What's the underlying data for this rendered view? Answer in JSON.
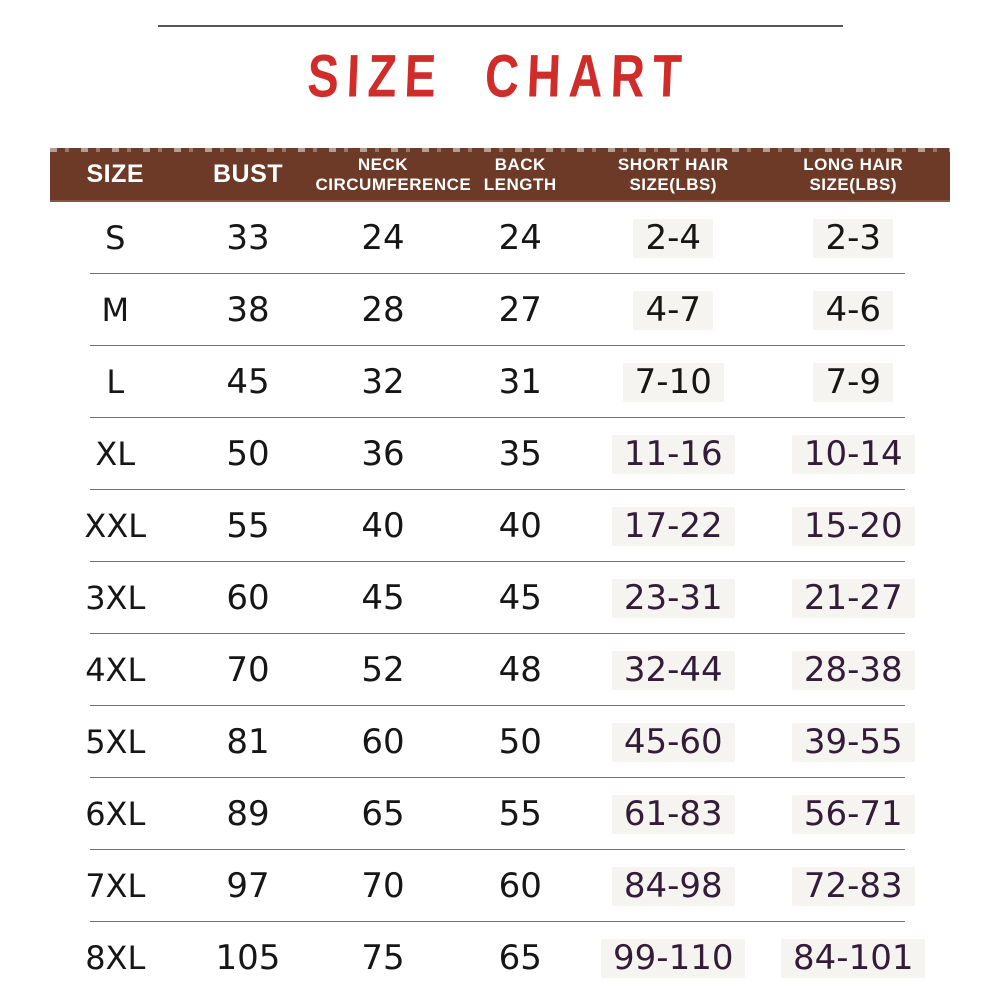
{
  "title": "SIZE CHART",
  "colors": {
    "title_red": "#d02c2a",
    "header_brown": "#6d3a28",
    "hair_text_purple": "#331c38",
    "body_text": "#161616"
  },
  "chart_data": {
    "type": "table",
    "title": "SIZE CHART",
    "columns": [
      "SIZE",
      "BUST",
      "NECK CIRCUMFERENCE",
      "BACK LENGTH",
      "SHORT HAIR SIZE(LBS)",
      "LONG HAIR SIZE(LBS)"
    ],
    "column_header_lines": [
      [
        "SIZE"
      ],
      [
        "BUST"
      ],
      [
        "NECK",
        "CIRCUMFERENCE"
      ],
      [
        "BACK",
        "LENGTH"
      ],
      [
        "SHORT HAIR",
        "SIZE(LBS)"
      ],
      [
        "LONG HAIR",
        "SIZE(LBS)"
      ]
    ],
    "column_keys": [
      "size",
      "bust",
      "neck-circumference",
      "back-length",
      "short-hair-size",
      "long-hair-size"
    ],
    "rows": [
      [
        "S",
        "33",
        "24",
        "24",
        "2-4",
        "2-3"
      ],
      [
        "M",
        "38",
        "28",
        "27",
        "4-7",
        "4-6"
      ],
      [
        "L",
        "45",
        "32",
        "31",
        "7-10",
        "7-9"
      ],
      [
        "XL",
        "50",
        "36",
        "35",
        "11-16",
        "10-14"
      ],
      [
        "XXL",
        "55",
        "40",
        "40",
        "17-22",
        "15-20"
      ],
      [
        "3XL",
        "60",
        "45",
        "45",
        "23-31",
        "21-27"
      ],
      [
        "4XL",
        "70",
        "52",
        "48",
        "32-44",
        "28-38"
      ],
      [
        "5XL",
        "81",
        "60",
        "50",
        "45-60",
        "39-55"
      ],
      [
        "6XL",
        "89",
        "65",
        "55",
        "61-83",
        "56-71"
      ],
      [
        "7XL",
        "97",
        "70",
        "60",
        "84-98",
        "72-83"
      ],
      [
        "8XL",
        "105",
        "75",
        "65",
        "99-110",
        "84-101"
      ]
    ]
  }
}
